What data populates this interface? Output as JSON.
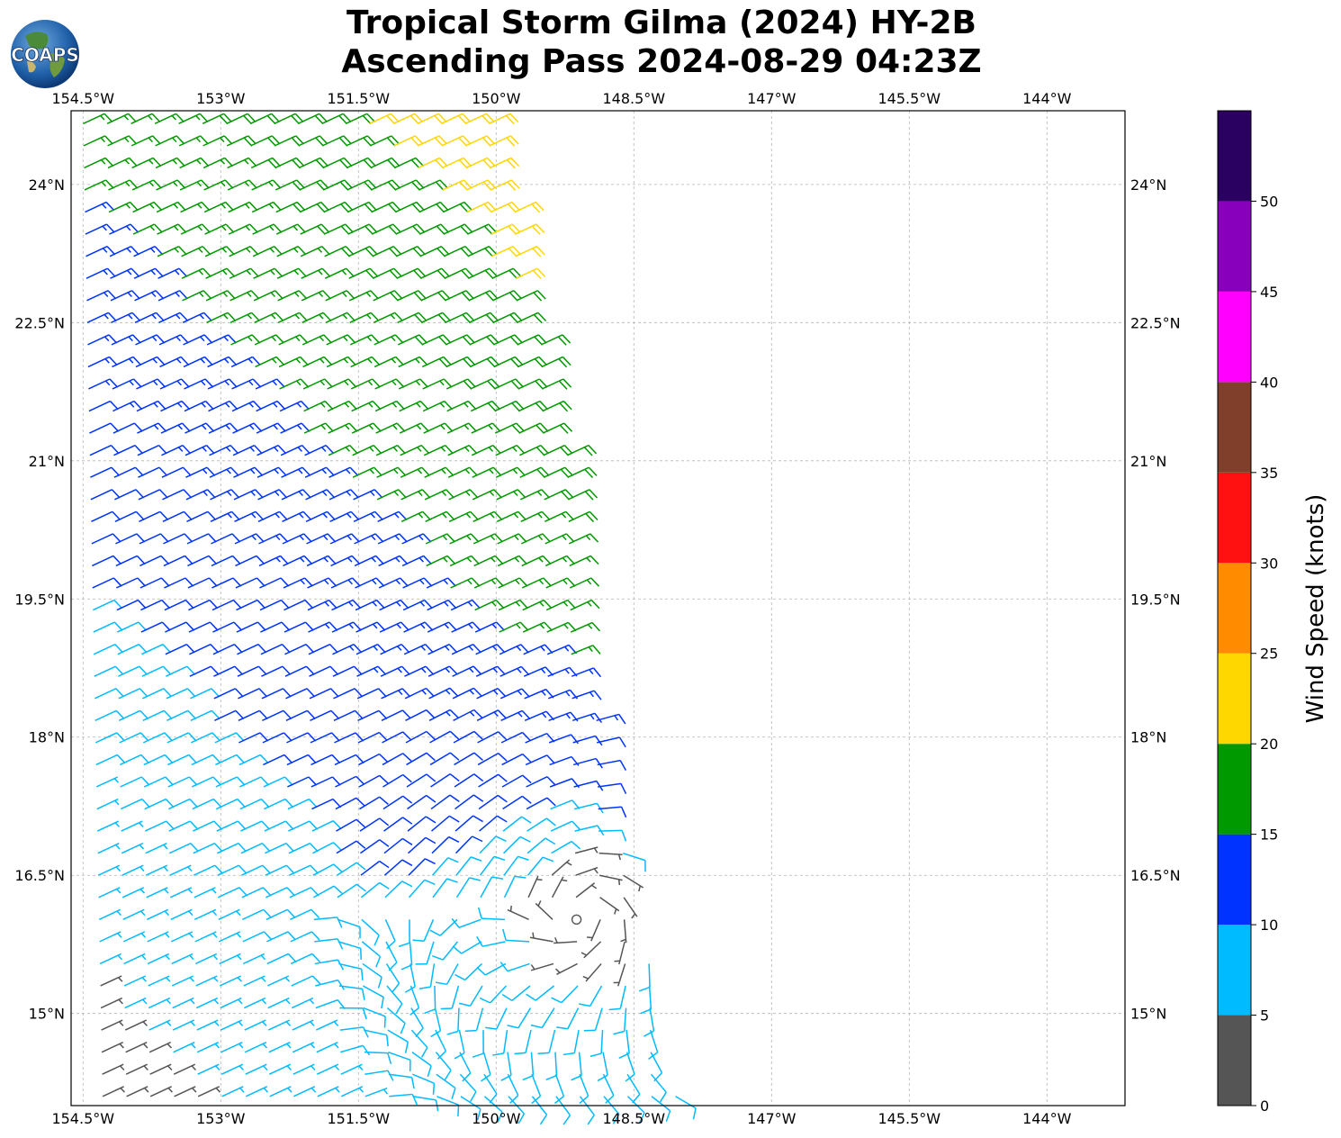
{
  "title": {
    "line1": "Tropical Storm Gilma (2024) HY-2B",
    "line2": "Ascending Pass 2024-08-29 04:23Z"
  },
  "logo": {
    "text": "COAPS",
    "icon": "globe-logo-icon"
  },
  "map": {
    "lon_labels": [
      "154.5°W",
      "153°W",
      "151.5°W",
      "150°W",
      "148.5°W",
      "147°W",
      "145.5°W",
      "144°W"
    ],
    "lon_values": [
      -154.5,
      -153,
      -151.5,
      -150,
      -148.5,
      -147,
      -145.5,
      -144
    ],
    "lat_labels": [
      "24°N",
      "22.5°N",
      "21°N",
      "19.5°N",
      "18°N",
      "16.5°N",
      "15°N"
    ],
    "lat_values": [
      24,
      22.5,
      21,
      19.5,
      18,
      16.5,
      15
    ],
    "extent": {
      "lon": [
        -154.63,
        -143.15
      ],
      "lat": [
        14.0,
        24.8
      ]
    },
    "gridlines": true,
    "swath_east_edge": [
      [
        24.8,
        -150.0
      ],
      [
        21.0,
        -149.2
      ],
      [
        19.0,
        -149.0
      ],
      [
        17.5,
        -148.8
      ],
      [
        16.0,
        -148.4
      ],
      [
        14.0,
        -148.0
      ]
    ],
    "wind_barbs": "HY-2B scatterometer wind barbs over the swath, colored by speed"
  },
  "colorbar": {
    "label": "Wind Speed (knots)",
    "ticks": [
      "0",
      "5",
      "10",
      "15",
      "20",
      "25",
      "30",
      "35",
      "40",
      "45",
      "50"
    ],
    "bins": [
      {
        "from": 0,
        "to": 5,
        "color": "#555555"
      },
      {
        "from": 5,
        "to": 10,
        "color": "#00bbff"
      },
      {
        "from": 10,
        "to": 15,
        "color": "#0033ff"
      },
      {
        "from": 15,
        "to": 20,
        "color": "#009900"
      },
      {
        "from": 20,
        "to": 25,
        "color": "#ffd700"
      },
      {
        "from": 25,
        "to": 30,
        "color": "#ff8c00"
      },
      {
        "from": 30,
        "to": 35,
        "color": "#ff1111"
      },
      {
        "from": 35,
        "to": 40,
        "color": "#7f3f2a"
      },
      {
        "from": 40,
        "to": 45,
        "color": "#ff00ff"
      },
      {
        "from": 45,
        "to": 50,
        "color": "#8800bb"
      },
      {
        "from": 50,
        "to": 55,
        "color": "#2a0060"
      }
    ]
  },
  "storm": {
    "center_lat": 16.1,
    "center_lon": -149.0
  }
}
